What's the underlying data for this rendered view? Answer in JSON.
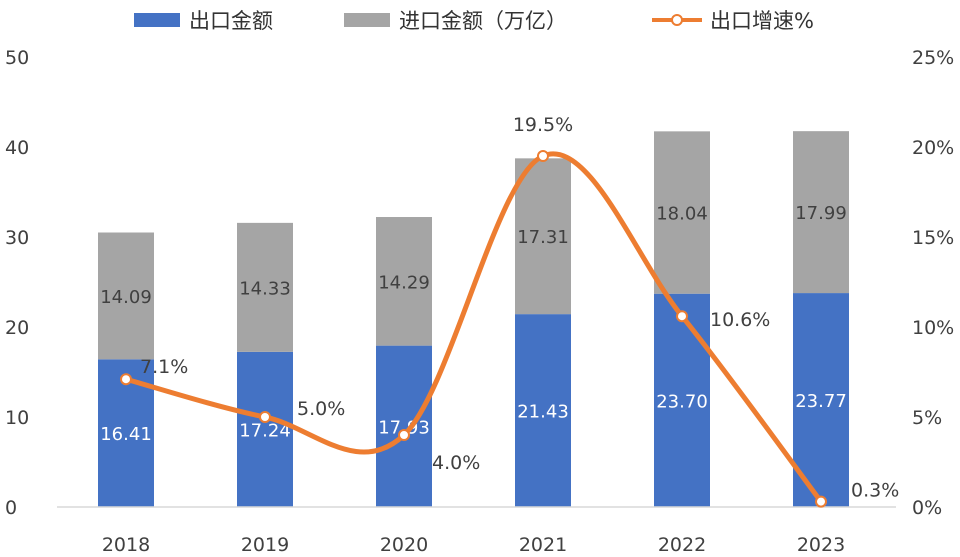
{
  "chart_data": {
    "type": "bar",
    "stacked": true,
    "categories": [
      "2018",
      "2019",
      "2020",
      "2021",
      "2022",
      "2023"
    ],
    "series": [
      {
        "name": "出口金额",
        "axis": "left",
        "color": "#4472C4",
        "label_color": "#ffffff",
        "values": [
          16.41,
          17.24,
          17.93,
          21.43,
          23.7,
          23.77
        ],
        "labels": [
          "16.41",
          "17.24",
          "17.93",
          "21.43",
          "23.70",
          "23.77"
        ]
      },
      {
        "name": "进口金额（万亿）",
        "axis": "left",
        "color": "#A5A5A5",
        "label_color": "#404040",
        "values": [
          14.09,
          14.33,
          14.29,
          17.31,
          18.04,
          17.99
        ],
        "labels": [
          "14.09",
          "14.33",
          "14.29",
          "17.31",
          "18.04",
          "17.99"
        ]
      },
      {
        "name": "出口增速%",
        "type": "line",
        "smooth": true,
        "axis": "right",
        "color": "#ED7D31",
        "values": [
          7.1,
          5.0,
          4.0,
          19.5,
          10.6,
          0.3
        ],
        "labels": [
          "7.1%",
          "5.0%",
          "4.0%",
          "19.5%",
          "10.6%",
          "0.3%"
        ]
      }
    ],
    "y_left": {
      "min": 0,
      "max": 50,
      "ticks": [
        0,
        10,
        20,
        30,
        40,
        50
      ],
      "tick_labels": [
        "0",
        "10",
        "20",
        "30",
        "40",
        "50"
      ]
    },
    "y_right": {
      "min": 0,
      "max": 25,
      "ticks": [
        0,
        5,
        10,
        15,
        20,
        25
      ],
      "tick_labels": [
        "0%",
        "5%",
        "10%",
        "15%",
        "20%",
        "25%"
      ]
    },
    "grid": false,
    "legend": {
      "position": "top",
      "items": [
        {
          "label": "出口金额",
          "kind": "bar",
          "color": "#4472C4"
        },
        {
          "label": "进口金额（万亿）",
          "kind": "bar",
          "color": "#A5A5A5"
        },
        {
          "label": "出口增速%",
          "kind": "line",
          "color": "#ED7D31"
        }
      ]
    },
    "title": "",
    "xlabel": "",
    "ylabel": ""
  }
}
